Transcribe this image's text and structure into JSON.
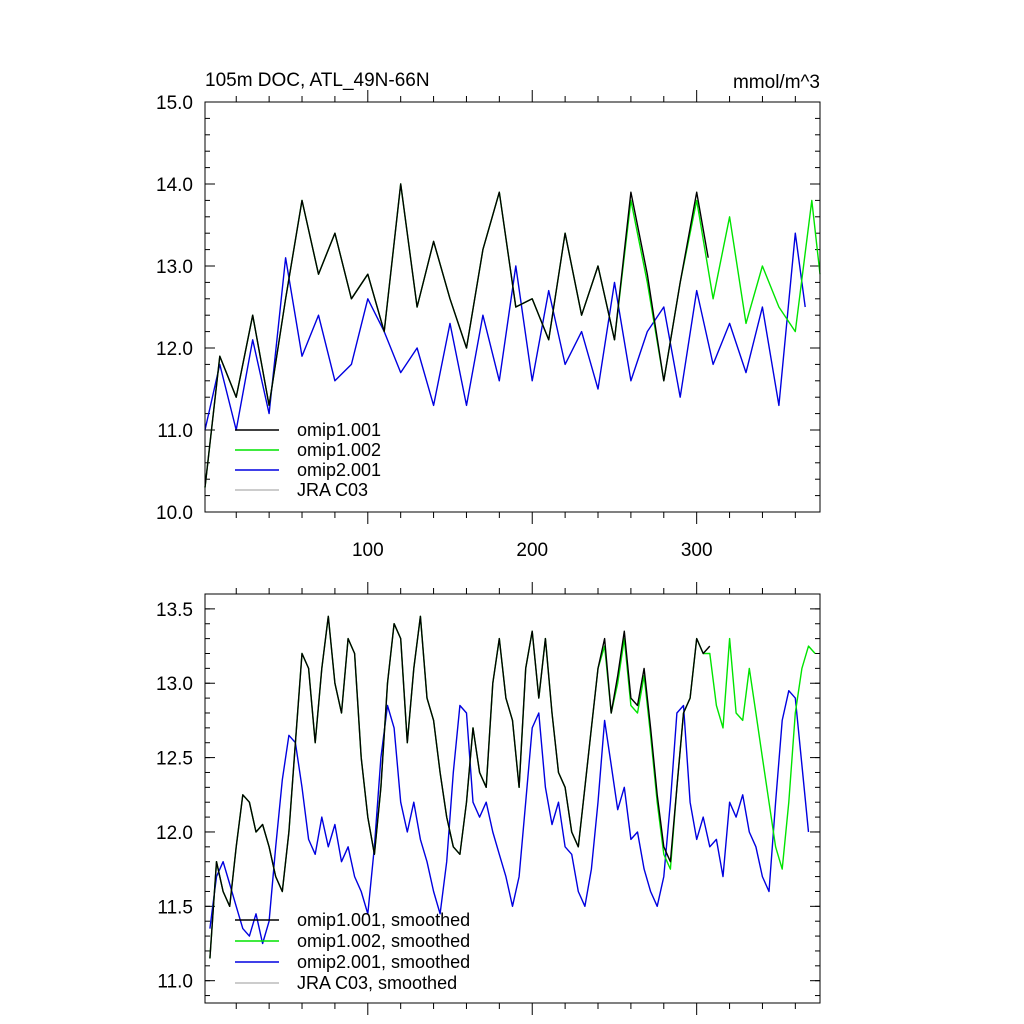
{
  "colors": {
    "omip1_001": "#000000",
    "omip1_002": "#00e400",
    "omip2_001": "#0000e0",
    "jra_c03": "#bbbbbb"
  },
  "chart_data": [
    {
      "type": "line",
      "title": "105m DOC, ATL_49N-66N",
      "units": "mmol/m^3",
      "xlim": [
        1,
        375
      ],
      "ylim": [
        10.0,
        15.0
      ],
      "xticks": [
        100,
        200,
        300
      ],
      "xtick_labels": [
        "100",
        "200",
        "300"
      ],
      "yticks": [
        10.0,
        11.0,
        12.0,
        13.0,
        14.0,
        15.0
      ],
      "ytick_labels": [
        "10.0",
        "11.0",
        "12.0",
        "13.0",
        "14.0",
        "15.0"
      ],
      "legend": [
        "omip1.001",
        "omip1.002",
        "omip2.001",
        "JRA C03"
      ],
      "legend_position": "lower-left",
      "series": [
        {
          "name": "omip1.001",
          "color_key": "omip1_001",
          "x": [
            1,
            10,
            20,
            30,
            40,
            50,
            60,
            70,
            80,
            90,
            100,
            110,
            120,
            130,
            140,
            150,
            160,
            170,
            180,
            190,
            200,
            210,
            220,
            230,
            240,
            250,
            260,
            270,
            280,
            290,
            300,
            307
          ],
          "y": [
            10.3,
            11.9,
            11.4,
            12.4,
            11.3,
            12.6,
            13.8,
            12.9,
            13.4,
            12.6,
            12.9,
            12.2,
            14.0,
            12.5,
            13.3,
            12.6,
            12.0,
            13.2,
            13.9,
            12.5,
            12.6,
            12.1,
            13.4,
            12.4,
            13.0,
            12.1,
            13.9,
            12.9,
            11.6,
            12.8,
            13.9,
            13.1
          ]
        },
        {
          "name": "omip1.002",
          "color_key": "omip1_002",
          "x": [
            1,
            10,
            20,
            30,
            40,
            50,
            60,
            70,
            80,
            90,
            100,
            110,
            120,
            130,
            140,
            150,
            160,
            170,
            180,
            190,
            200,
            210,
            220,
            230,
            240,
            250,
            260,
            270,
            280,
            290,
            300,
            310,
            320,
            330,
            340,
            350,
            360,
            370,
            375
          ],
          "y": [
            10.3,
            11.9,
            11.4,
            12.4,
            11.3,
            12.6,
            13.8,
            12.9,
            13.4,
            12.6,
            12.9,
            12.2,
            14.0,
            12.5,
            13.3,
            12.6,
            12.0,
            13.2,
            13.9,
            12.5,
            12.6,
            12.1,
            13.4,
            12.4,
            13.0,
            12.1,
            13.8,
            12.8,
            11.6,
            12.8,
            13.8,
            12.6,
            13.6,
            12.3,
            13.0,
            12.5,
            12.2,
            13.8,
            12.9
          ]
        },
        {
          "name": "omip2.001",
          "color_key": "omip2_001",
          "x": [
            1,
            10,
            20,
            30,
            40,
            50,
            60,
            70,
            80,
            90,
            100,
            110,
            120,
            130,
            140,
            150,
            160,
            170,
            180,
            190,
            200,
            210,
            220,
            230,
            240,
            250,
            260,
            270,
            280,
            290,
            300,
            310,
            320,
            330,
            340,
            350,
            360,
            366
          ],
          "y": [
            11.0,
            11.8,
            11.0,
            12.1,
            11.2,
            13.1,
            11.9,
            12.4,
            11.6,
            11.8,
            12.6,
            12.2,
            11.7,
            12.0,
            11.3,
            12.3,
            11.3,
            12.4,
            11.6,
            13.0,
            11.6,
            12.7,
            11.8,
            12.2,
            11.5,
            12.8,
            11.6,
            12.2,
            12.5,
            11.4,
            12.7,
            11.8,
            12.3,
            11.7,
            12.5,
            11.3,
            13.4,
            12.5
          ]
        },
        {
          "name": "JRA C03",
          "color_key": "jra_c03",
          "x": [],
          "y": []
        }
      ]
    },
    {
      "type": "line",
      "xlim": [
        1,
        375
      ],
      "ylim": [
        10.85,
        13.6
      ],
      "xticks": [
        100,
        200,
        300
      ],
      "xtick_labels": [],
      "yticks": [
        11.0,
        11.5,
        12.0,
        12.5,
        13.0,
        13.5
      ],
      "ytick_labels": [
        "11.0",
        "11.5",
        "12.0",
        "12.5",
        "13.0",
        "13.5"
      ],
      "legend": [
        "omip1.001, smoothed",
        "omip1.002, smoothed",
        "omip2.001, smoothed",
        "JRA C03, smoothed"
      ],
      "legend_position": "lower-left",
      "series": [
        {
          "name": "omip1.001, smoothed",
          "color_key": "omip1_001",
          "x": [
            4,
            8,
            12,
            16,
            20,
            24,
            28,
            32,
            36,
            40,
            44,
            48,
            52,
            56,
            60,
            64,
            68,
            72,
            76,
            80,
            84,
            88,
            92,
            96,
            100,
            104,
            108,
            112,
            116,
            120,
            124,
            128,
            132,
            136,
            140,
            144,
            148,
            152,
            156,
            160,
            164,
            168,
            172,
            176,
            180,
            184,
            188,
            192,
            196,
            200,
            204,
            208,
            212,
            216,
            220,
            224,
            228,
            232,
            236,
            240,
            244,
            248,
            252,
            256,
            260,
            264,
            268,
            272,
            276,
            280,
            284,
            288,
            292,
            296,
            300,
            304,
            308
          ],
          "y": [
            11.15,
            11.8,
            11.6,
            11.5,
            11.9,
            12.25,
            12.2,
            12.0,
            12.05,
            11.9,
            11.7,
            11.6,
            12.0,
            12.6,
            13.2,
            13.1,
            12.6,
            13.1,
            13.45,
            13.0,
            12.8,
            13.3,
            13.2,
            12.5,
            12.1,
            11.85,
            12.3,
            13.0,
            13.4,
            13.3,
            12.6,
            13.1,
            13.45,
            12.9,
            12.75,
            12.4,
            12.1,
            11.9,
            11.85,
            12.2,
            12.7,
            12.4,
            12.3,
            13.0,
            13.3,
            12.9,
            12.75,
            12.3,
            13.1,
            13.35,
            12.9,
            13.3,
            12.8,
            12.4,
            12.3,
            12.0,
            11.9,
            12.3,
            12.7,
            13.1,
            13.3,
            12.8,
            13.05,
            13.35,
            12.9,
            12.85,
            13.1,
            12.7,
            12.25,
            11.9,
            11.8,
            12.3,
            12.8,
            12.9,
            13.3,
            13.2,
            13.25
          ]
        },
        {
          "name": "omip1.002, smoothed",
          "color_key": "omip1_002",
          "x": [
            4,
            8,
            12,
            16,
            20,
            24,
            28,
            32,
            36,
            40,
            44,
            48,
            52,
            56,
            60,
            64,
            68,
            72,
            76,
            80,
            84,
            88,
            92,
            96,
            100,
            104,
            108,
            112,
            116,
            120,
            124,
            128,
            132,
            136,
            140,
            144,
            148,
            152,
            156,
            160,
            164,
            168,
            172,
            176,
            180,
            184,
            188,
            192,
            196,
            200,
            204,
            208,
            212,
            216,
            220,
            224,
            228,
            232,
            236,
            240,
            244,
            248,
            252,
            256,
            260,
            264,
            268,
            272,
            276,
            280,
            284,
            288,
            292,
            296,
            300,
            304,
            308,
            312,
            316,
            320,
            324,
            328,
            332,
            336,
            340,
            344,
            348,
            352,
            356,
            360,
            364,
            368,
            372
          ],
          "y": [
            11.15,
            11.8,
            11.6,
            11.5,
            11.9,
            12.25,
            12.2,
            12.0,
            12.05,
            11.9,
            11.7,
            11.6,
            12.0,
            12.6,
            13.2,
            13.1,
            12.6,
            13.1,
            13.45,
            13.0,
            12.8,
            13.3,
            13.2,
            12.5,
            12.1,
            11.85,
            12.3,
            13.0,
            13.4,
            13.3,
            12.6,
            13.1,
            13.45,
            12.9,
            12.75,
            12.4,
            12.1,
            11.9,
            11.85,
            12.2,
            12.7,
            12.4,
            12.3,
            13.0,
            13.3,
            12.9,
            12.75,
            12.3,
            13.1,
            13.35,
            12.9,
            13.3,
            12.8,
            12.4,
            12.3,
            12.0,
            11.9,
            12.3,
            12.7,
            13.1,
            13.25,
            12.8,
            13.0,
            13.3,
            12.85,
            12.8,
            13.05,
            12.65,
            12.2,
            11.85,
            11.75,
            12.3,
            12.8,
            12.9,
            13.3,
            13.2,
            13.2,
            12.85,
            12.7,
            13.3,
            12.8,
            12.75,
            13.1,
            12.8,
            12.5,
            12.2,
            11.9,
            11.75,
            12.2,
            12.8,
            13.1,
            13.25,
            13.2
          ]
        },
        {
          "name": "omip2.001, smoothed",
          "color_key": "omip2_001",
          "x": [
            4,
            8,
            12,
            16,
            20,
            24,
            28,
            32,
            36,
            40,
            44,
            48,
            52,
            56,
            60,
            64,
            68,
            72,
            76,
            80,
            84,
            88,
            92,
            96,
            100,
            104,
            108,
            112,
            116,
            120,
            124,
            128,
            132,
            136,
            140,
            144,
            148,
            152,
            156,
            160,
            164,
            168,
            172,
            176,
            180,
            184,
            188,
            192,
            196,
            200,
            204,
            208,
            212,
            216,
            220,
            224,
            228,
            232,
            236,
            240,
            244,
            248,
            252,
            256,
            260,
            264,
            268,
            272,
            276,
            280,
            284,
            288,
            292,
            296,
            300,
            304,
            308,
            312,
            316,
            320,
            324,
            328,
            332,
            336,
            340,
            344,
            348,
            352,
            356,
            360,
            364,
            368
          ],
          "y": [
            11.35,
            11.7,
            11.8,
            11.65,
            11.5,
            11.35,
            11.3,
            11.45,
            11.25,
            11.4,
            11.9,
            12.35,
            12.65,
            12.6,
            12.3,
            11.95,
            11.85,
            12.1,
            11.9,
            12.05,
            11.8,
            11.9,
            11.7,
            11.6,
            11.45,
            11.9,
            12.5,
            12.85,
            12.7,
            12.2,
            12.0,
            12.2,
            11.95,
            11.8,
            11.6,
            11.45,
            11.8,
            12.4,
            12.85,
            12.8,
            12.2,
            12.1,
            12.2,
            12.0,
            11.85,
            11.7,
            11.5,
            11.7,
            12.2,
            12.7,
            12.8,
            12.3,
            12.05,
            12.2,
            11.9,
            11.85,
            11.6,
            11.5,
            11.75,
            12.2,
            12.75,
            12.45,
            12.15,
            12.3,
            11.95,
            12.0,
            11.75,
            11.6,
            11.5,
            11.7,
            12.2,
            12.8,
            12.85,
            12.2,
            11.95,
            12.1,
            11.9,
            11.95,
            11.7,
            12.2,
            12.1,
            12.25,
            12.0,
            11.9,
            11.7,
            11.6,
            12.2,
            12.75,
            12.95,
            12.9,
            12.45,
            12.0
          ]
        },
        {
          "name": "JRA C03, smoothed",
          "color_key": "jra_c03",
          "x": [],
          "y": []
        }
      ]
    }
  ]
}
